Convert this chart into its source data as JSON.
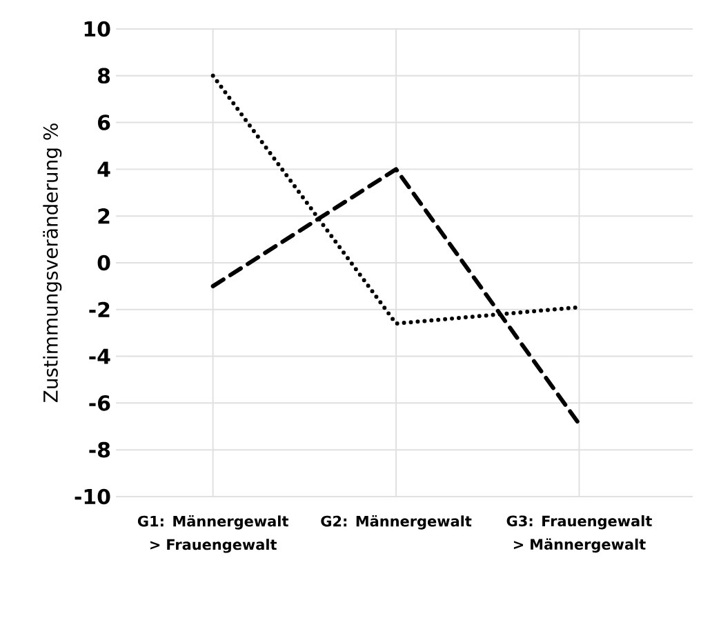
{
  "chart_data": {
    "type": "line",
    "ylabel": "Zustimmungsveränderung %",
    "categories": [
      "G1: Männergewalt > Frauengewalt",
      "G2: Männergewalt",
      "G3: Frauengewalt > Männergewalt"
    ],
    "series": [
      {
        "color": "#000000",
        "line_style": "dotted",
        "values": [
          8,
          -2.6,
          -1.9
        ]
      },
      {
        "color": "#000000",
        "line_style": "dashed",
        "values": [
          -1,
          4,
          -6.9
        ]
      }
    ],
    "ylim": [
      -10,
      10
    ],
    "yticks": [
      -10,
      -8,
      -6,
      -4,
      -2,
      0,
      2,
      4,
      6,
      8,
      10
    ],
    "grid": true,
    "marker": "none"
  }
}
